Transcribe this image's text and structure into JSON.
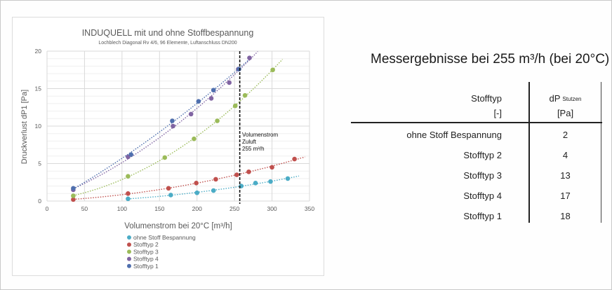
{
  "chart_data": {
    "type": "scatter",
    "title": "INDUQUELL mit und ohne Stoffbespannung",
    "subtitle": "Lochblech Diagonal Rv 4/6, 96 Elemente, Luftanschluss DN200",
    "xlabel": "Volumenstrom bei 20°C  [m³/h]",
    "ylabel": "Druckverlust dP1 [Pa]",
    "xlim": [
      0,
      350
    ],
    "ylim": [
      0,
      20
    ],
    "xticks": [
      0,
      50,
      100,
      150,
      200,
      250,
      300,
      350
    ],
    "yticks": [
      0,
      5,
      10,
      15,
      20
    ],
    "grid": true,
    "legend_position": "bottom",
    "trendlines": "dotted polynomial",
    "annotation": {
      "x": 255,
      "lines": [
        "Volumenstrom",
        "Zuluft",
        "255 m³/h"
      ],
      "style": "dashed vertical line"
    },
    "series": [
      {
        "name": "ohne Stoff Bespannung",
        "color": "#4bacc6",
        "x": [
          108,
          165,
          200,
          222,
          259,
          278,
          298,
          321
        ],
        "y": [
          0.3,
          0.8,
          1.1,
          1.4,
          2.0,
          2.4,
          2.6,
          3.0
        ]
      },
      {
        "name": "Stofftyp 2",
        "color": "#c0504d",
        "x": [
          35,
          108,
          162,
          199,
          225,
          253,
          269,
          300,
          330
        ],
        "y": [
          0.2,
          1.0,
          1.7,
          2.4,
          2.9,
          3.5,
          3.9,
          4.5,
          5.6
        ]
      },
      {
        "name": "Stofftyp 3",
        "color": "#9bbb59",
        "x": [
          35,
          108,
          157,
          196,
          227,
          251,
          264,
          301
        ],
        "y": [
          0.7,
          3.3,
          5.8,
          8.3,
          10.7,
          12.7,
          14.1,
          17.5
        ]
      },
      {
        "name": "Stofftyp 4",
        "color": "#8064a2",
        "x": [
          35,
          108,
          168,
          192,
          219,
          243,
          255,
          270
        ],
        "y": [
          1.5,
          5.9,
          10.0,
          11.6,
          13.7,
          15.8,
          17.6,
          19.1
        ]
      },
      {
        "name": "Stofftyp 1",
        "color": "#4f6fae",
        "x": [
          35,
          112,
          167,
          202,
          222,
          256
        ],
        "y": [
          1.7,
          6.2,
          10.7,
          13.3,
          14.8,
          17.6
        ]
      }
    ]
  },
  "chart": {
    "title": "INDUQUELL mit und ohne Stoffbespannung",
    "subtitle": "Lochblech Diagonal Rv 4/6, 96 Elemente, Luftanschluss DN200",
    "xlabel": "Volumenstrom bei 20°C  [m³/h]",
    "ylabel": "Druckverlust dP1 [Pa]",
    "annotation": [
      "Volumenstrom",
      "Zuluft",
      "255 m³/h"
    ]
  },
  "table": {
    "title": "Messergebnisse bei 255 m³/h (bei 20°C)",
    "col1_header": "Stofftyp",
    "col1_unit": "[-]",
    "col2_header": "dP",
    "col2_header_sub": "Stutzen",
    "col2_unit": "[Pa]",
    "rows": [
      {
        "type": "ohne Stoff Bespannung",
        "dp": "2"
      },
      {
        "type": "Stofftyp 2",
        "dp": "4"
      },
      {
        "type": "Stofftyp 3",
        "dp": "13"
      },
      {
        "type": "Stofftyp 4",
        "dp": "17"
      },
      {
        "type": "Stofftyp 1",
        "dp": "18"
      }
    ]
  }
}
